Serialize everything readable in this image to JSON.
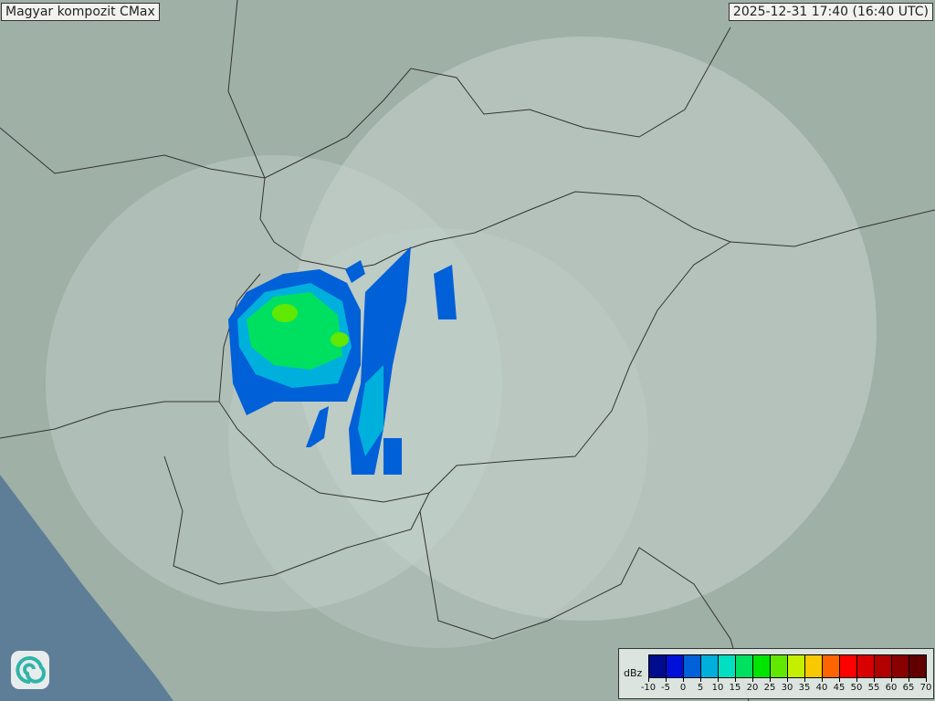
{
  "header": {
    "title": "Magyar kompozit  CMax",
    "timestamp": "2025-12-31 17:40 (16:40 UTC)"
  },
  "legend": {
    "unit": "dBz",
    "ticks": [
      "-10",
      "-5",
      "0",
      "5",
      "10",
      "15",
      "20",
      "25",
      "30",
      "35",
      "40",
      "45",
      "50",
      "55",
      "60",
      "65",
      "70"
    ],
    "colors": [
      "#000c8c",
      "#0010d8",
      "#0060d8",
      "#00b0dc",
      "#00e0c0",
      "#00e060",
      "#00e400",
      "#60e800",
      "#c4f000",
      "#f8c800",
      "#ff6400",
      "#ff0000",
      "#d80000",
      "#b00000",
      "#880000",
      "#600000"
    ]
  },
  "logo": {
    "icon": "swirl-logo-icon"
  },
  "map": {
    "land_color": "#9fb0a6",
    "coverage_color": "#c4d2cc",
    "sea_color": "#5e7e98"
  }
}
